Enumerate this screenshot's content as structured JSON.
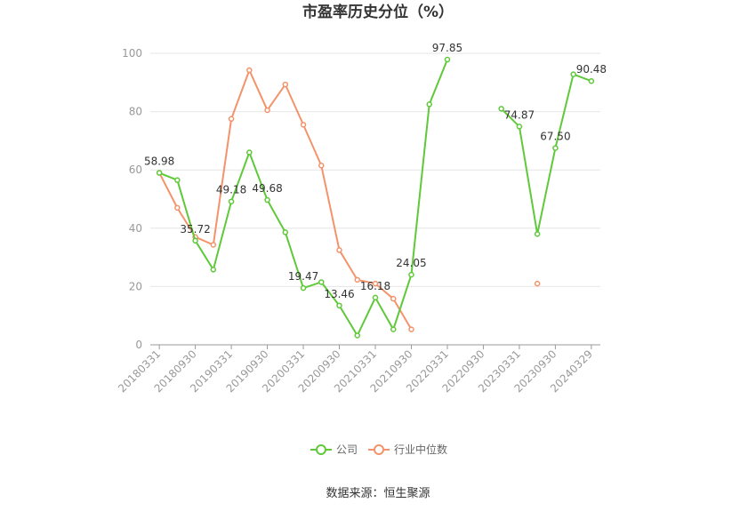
{
  "chart_data": {
    "type": "line",
    "title": "市盈率历史分位（%）",
    "xlabel": "",
    "ylabel": "",
    "ylim": [
      0,
      100
    ],
    "yticks": [
      "0",
      "20",
      "40",
      "60",
      "80",
      "100"
    ],
    "grid": true,
    "legend_position": "bottom",
    "x": [
      "20180331",
      "20180630",
      "20180930",
      "20181231",
      "20190331",
      "20190630",
      "20190930",
      "20191231",
      "20200331",
      "20200630",
      "20200930",
      "20201231",
      "20210331",
      "20210630",
      "20210930",
      "20211231",
      "20220331",
      "20220630",
      "20220930",
      "20221231",
      "20230331",
      "20230630",
      "20230930",
      "20231231",
      "20240329"
    ],
    "x_tick_labels": [
      "20180331",
      "20180930",
      "20190331",
      "20190930",
      "20200331",
      "20200930",
      "20210331",
      "20210930",
      "20220331",
      "20220930",
      "20230331",
      "20230930",
      "20240329"
    ],
    "series": [
      {
        "name": "公司",
        "color": "#5fc93a",
        "values": [
          58.98,
          56.5,
          35.72,
          25.8,
          49.18,
          66.0,
          49.68,
          38.6,
          19.47,
          21.5,
          13.46,
          3.2,
          16.18,
          5.3,
          24.05,
          82.5,
          97.85,
          null,
          null,
          81.0,
          74.87,
          38.0,
          67.5,
          92.8,
          90.48
        ],
        "labels": [
          {
            "index": 0,
            "text": "58.98"
          },
          {
            "index": 2,
            "text": "35.72"
          },
          {
            "index": 4,
            "text": "49.18"
          },
          {
            "index": 6,
            "text": "49.68"
          },
          {
            "index": 8,
            "text": "19.47"
          },
          {
            "index": 10,
            "text": "13.46"
          },
          {
            "index": 12,
            "text": "16.18"
          },
          {
            "index": 14,
            "text": "24.05"
          },
          {
            "index": 16,
            "text": "97.85"
          },
          {
            "index": 20,
            "text": "74.87"
          },
          {
            "index": 22,
            "text": "67.50"
          },
          {
            "index": 24,
            "text": "90.48"
          }
        ]
      },
      {
        "name": "行业中位数",
        "color": "#f4936b",
        "values": [
          59.0,
          47.0,
          37.0,
          34.3,
          77.5,
          94.2,
          80.5,
          89.3,
          75.5,
          61.5,
          32.5,
          22.3,
          21.0,
          15.8,
          5.3,
          null,
          null,
          null,
          null,
          null,
          null,
          21.0,
          null,
          null,
          null
        ]
      }
    ]
  },
  "legend": [
    {
      "name": "公司",
      "color": "#5fc93a"
    },
    {
      "name": "行业中位数",
      "color": "#f4936b"
    }
  ],
  "source_text": "数据来源：恒生聚源"
}
